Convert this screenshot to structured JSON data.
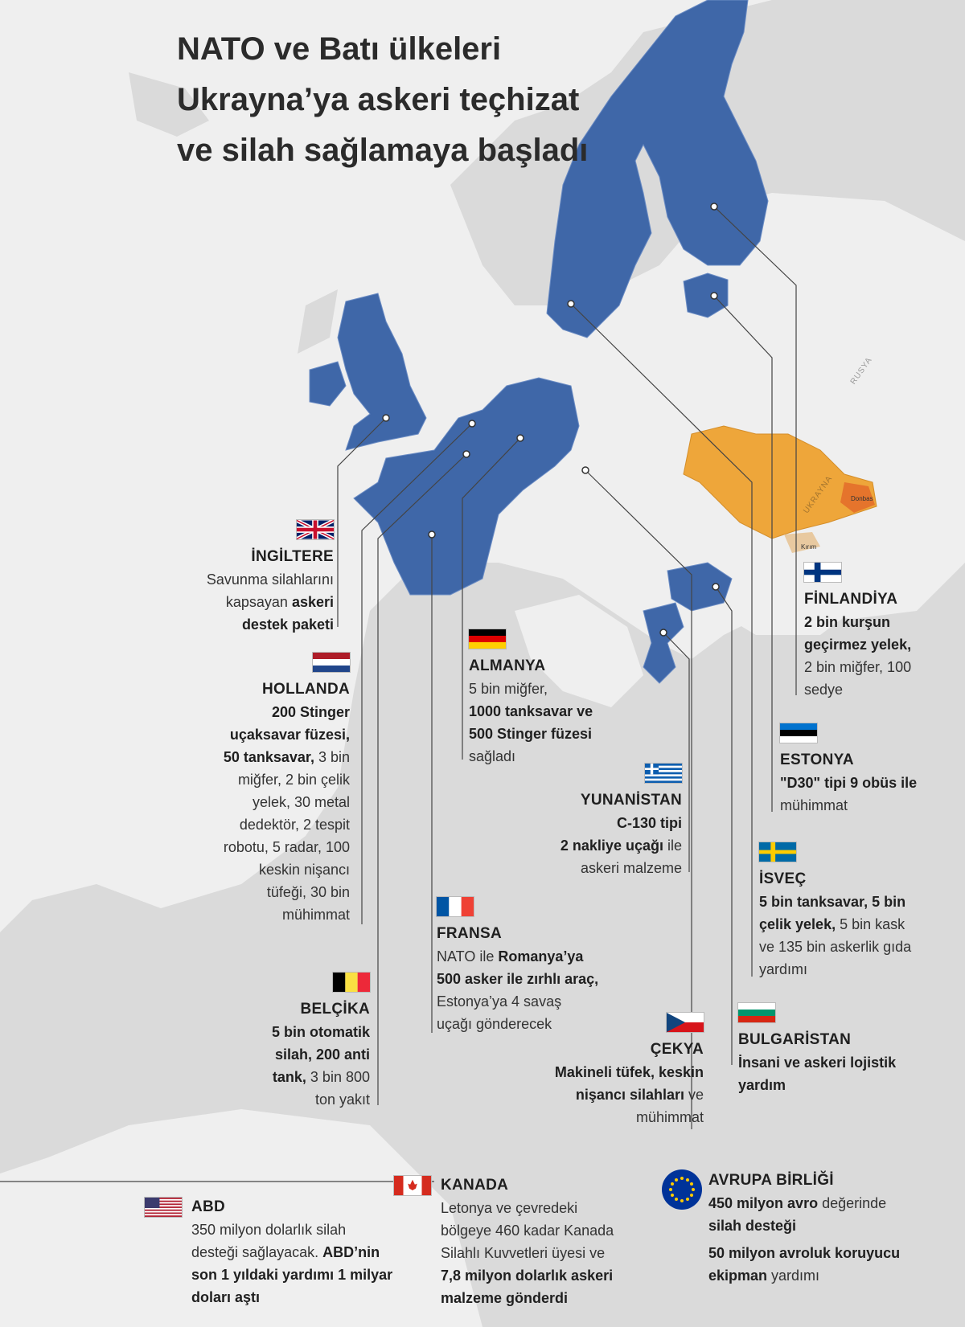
{
  "title": "NATO ve Batı ülkeleri Ukrayna’ya askeri teçhizat ve silah sağlamaya başladı",
  "map_labels": {
    "russia": "RUSYA",
    "ukraine": "UKRAYNA",
    "donbas": "Donbas",
    "kirim": "Kırım"
  },
  "colors": {
    "nato": "#3f67a8",
    "ukraine": "#eea63a",
    "donbas": "#e5742c",
    "land": "#dcdcdc",
    "sea": "#efefef"
  },
  "countries": {
    "ingiltere": {
      "name": "İNGİLTERE",
      "l1": "Savunma silahlarını",
      "l2a": "kapsayan ",
      "l2b": "askeri",
      "l3": "destek paketi"
    },
    "hollanda": {
      "name": "HOLLANDA",
      "l1": "200 Stinger",
      "l2": "uçaksavar füzesi,",
      "l3a": "50 tanksavar,",
      "l3b": " 3 bin",
      "l4": "miğfer, 2 bin çelik",
      "l5": "yelek, 30 metal",
      "l6": "dedektör, 2 tespit",
      "l7": "robotu, 5 radar, 100",
      "l8": "keskin nişancı",
      "l9": "tüfeği, 30 bin",
      "l10": "mühimmat"
    },
    "belcika": {
      "name": "BELÇİKA",
      "l1": "5 bin otomatik",
      "l2": "silah, 200 anti",
      "l3a": "tank,",
      "l3b": " 3 bin 800",
      "l4": "ton yakıt"
    },
    "almanya": {
      "name": "ALMANYA",
      "l1": "5 bin miğfer,",
      "l2": "1000 tanksavar ve",
      "l3": "500 Stinger füzesi",
      "l4": "sağladı"
    },
    "fransa": {
      "name": "FRANSA",
      "l1a": "NATO ile ",
      "l1b": "Romanya’ya",
      "l2": "500 asker ile zırhlı araç,",
      "l3": "Estonya’ya 4 savaş",
      "l4": "uçağı gönderecek"
    },
    "yunanistan": {
      "name": "YUNANİSTAN",
      "l1": "C-130 tipi",
      "l2a": "2 nakliye uçağı",
      "l2b": " ile",
      "l3": "askeri malzeme"
    },
    "cekya": {
      "name": "ÇEKYA",
      "l1": "Makineli tüfek, keskin",
      "l2a": "nişancı silahları",
      "l2b": " ve",
      "l3": "mühimmat"
    },
    "finlandiya": {
      "name": "FİNLANDİYA",
      "l1": "2 bin kurşun",
      "l2": "geçirmez yelek,",
      "l3": "2 bin miğfer, 100",
      "l4": "sedye"
    },
    "estonya": {
      "name": "ESTONYA",
      "l1": "\"D30\" tipi 9 obüs ile",
      "l2": "mühimmat"
    },
    "isvec": {
      "name": "İSVEÇ",
      "l1": "5 bin tanksavar, 5 bin",
      "l2a": "çelik yelek,",
      "l2b": " 5 bin kask",
      "l3": "ve 135 bin askerlik gıda",
      "l4": "yardımı"
    },
    "bulgaristan": {
      "name": "BULGARİSTAN",
      "l1": "İnsani ve askeri lojistik",
      "l2": "yardım"
    },
    "abd": {
      "name": "ABD",
      "l1": "350 milyon dolarlık silah",
      "l2a": "desteği sağlayacak. ",
      "l2b": "ABD’nin",
      "l3": "son 1 yıldaki yardımı 1 milyar",
      "l4": "doları aştı"
    },
    "kanada": {
      "name": "KANADA",
      "l1": "Letonya ve çevredeki",
      "l2": "bölgeye 460 kadar Kanada",
      "l3": "Silahlı Kuvvetleri üyesi ve",
      "l4": "7,8 milyon dolarlık askeri",
      "l5": "malzeme gönderdi"
    },
    "ab": {
      "name": "AVRUPA BİRLİĞİ",
      "l1a": "450 milyon avro",
      "l1b": " değerinde",
      "l2": "silah desteği",
      "l3": "50 milyon avroluk koruyucu",
      "l4a": "ekipman",
      "l4b": " yardımı"
    }
  }
}
